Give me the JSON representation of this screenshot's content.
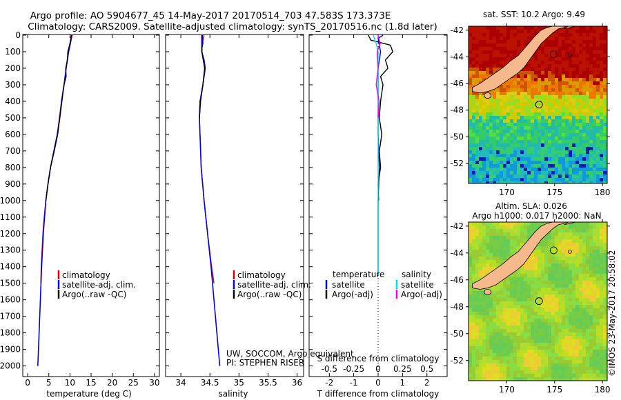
{
  "title_line1": "Argo profile: AO 5904677_45 14-May-2017 20170514_703 47.583S 173.373E",
  "title_line2": "Climatology: CARS2009. Satellite-adjusted climatology: synTS_20170516.nc (1.8d later)",
  "credit_line1": "UW, SOCCOM, Argo equivalent",
  "credit_line2": "PI: STEPHEN RISER",
  "side_stamp": "©IMOS 23-May-2017 20:58:02",
  "colors": {
    "climatology": "#dd0000",
    "satellite": "#0000ee",
    "argo": "#000000",
    "sal_satellite": "#00dddd",
    "sal_argo": "#ee00ee",
    "land": "#f5b98c"
  },
  "chart_data": [
    {
      "id": "temperature",
      "type": "line",
      "xlabel": "temperature (deg C)",
      "ylabel": "",
      "xlim": [
        -1,
        31
      ],
      "ylim": [
        2060,
        0
      ],
      "xticks": [
        0,
        5,
        10,
        15,
        20,
        25,
        30
      ],
      "yticks": [
        0,
        100,
        200,
        300,
        400,
        500,
        600,
        700,
        800,
        900,
        1000,
        1100,
        1200,
        1300,
        1400,
        1500,
        1600,
        1700,
        1800,
        1900,
        2000
      ],
      "legend": [
        "climatology",
        "satellite-adj. clim.",
        "Argo(..raw -QC)"
      ],
      "legend_position": "lower-right",
      "series": [
        {
          "name": "climatology",
          "depth": [
            0,
            50,
            100,
            200,
            300,
            400,
            500,
            600,
            700,
            800,
            900,
            1000,
            1100,
            1200,
            1300,
            1400,
            1500
          ],
          "values": [
            10.3,
            10.0,
            9.6,
            9.1,
            8.6,
            8.0,
            7.5,
            7.0,
            6.2,
            5.4,
            4.8,
            4.3,
            3.9,
            3.6,
            3.4,
            3.2,
            3.1
          ]
        },
        {
          "name": "satellite-adj. clim.",
          "depth": [
            0,
            50,
            100,
            200,
            300,
            400,
            500,
            600,
            700,
            800,
            900,
            1000,
            1200,
            1400,
            1600,
            1800,
            2000
          ],
          "values": [
            10.5,
            10.1,
            9.7,
            9.1,
            8.6,
            8.0,
            7.6,
            7.0,
            6.2,
            5.4,
            4.8,
            4.3,
            3.7,
            3.3,
            3.0,
            2.7,
            2.4
          ]
        },
        {
          "name": "Argo(..raw -QC)",
          "depth": [
            0,
            50,
            100,
            150,
            200,
            250,
            300,
            400,
            500,
            600,
            700,
            800,
            900,
            1000
          ],
          "values": [
            10.4,
            10.0,
            9.5,
            9.4,
            9.0,
            9.1,
            8.6,
            8.1,
            7.6,
            7.1,
            6.3,
            5.4,
            4.8,
            4.3
          ]
        }
      ]
    },
    {
      "id": "salinity",
      "type": "line",
      "xlabel": "salinity",
      "xlim": [
        33.75,
        36.1
      ],
      "ylim": [
        2060,
        0
      ],
      "xticks": [
        34,
        34.5,
        35,
        35.5,
        36
      ],
      "legend": [
        "climatology",
        "satellite-adj. clim.",
        "Argo(..raw -QC)"
      ],
      "legend_position": "lower-right",
      "series": [
        {
          "name": "climatology",
          "depth": [
            0,
            50,
            100,
            150,
            200,
            300,
            400,
            500,
            600,
            800,
            1000,
            1200,
            1400,
            1500
          ],
          "values": [
            34.4,
            34.37,
            34.36,
            34.4,
            34.41,
            34.38,
            34.33,
            34.32,
            34.33,
            34.35,
            34.4,
            34.46,
            34.53,
            34.57
          ]
        },
        {
          "name": "satellite-adj. clim.",
          "depth": [
            0,
            50,
            100,
            150,
            200,
            300,
            400,
            500,
            600,
            800,
            1000,
            1200,
            1400,
            1600,
            1800,
            2000
          ],
          "values": [
            34.36,
            34.36,
            34.36,
            34.4,
            34.42,
            34.38,
            34.33,
            34.32,
            34.33,
            34.35,
            34.4,
            34.46,
            34.52,
            34.57,
            34.62,
            34.67
          ]
        },
        {
          "name": "Argo(..raw -QC)",
          "depth": [
            0,
            50,
            80,
            120,
            200,
            300,
            400,
            500
          ],
          "values": [
            34.37,
            34.38,
            34.36,
            34.37,
            34.41,
            34.38,
            34.34,
            34.32
          ]
        }
      ]
    },
    {
      "id": "difference",
      "type": "line",
      "xlabel": "T difference from climatology",
      "xlabel_top": "S difference from climatology",
      "xlim": [
        -2.8,
        2.8
      ],
      "ylim": [
        2060,
        0
      ],
      "xticks": [
        -2,
        -1,
        0,
        1,
        2
      ],
      "xticks_top": [
        -0.5,
        -0.25,
        0,
        0.25,
        0.5
      ],
      "xtick_labels_top": [
        "-0.5",
        "-0.25",
        "0",
        "0.25",
        "0.5"
      ],
      "legend_headers": [
        "temperature",
        "salinity"
      ],
      "legend": [
        "satellite",
        "Argo(-adj)",
        "satellite",
        "Argo(-adj)"
      ],
      "legend_position": "lower",
      "series": [
        {
          "name": "temperature satellite",
          "depth": [
            0,
            20,
            100,
            200,
            400,
            600,
            800,
            1000,
            1200,
            1400,
            1450
          ],
          "values": [
            0.2,
            0.0,
            0.1,
            0.0,
            0.0,
            0.0,
            0.05,
            0.0,
            0.0,
            0.0,
            0.0
          ]
        },
        {
          "name": "temperature Argo(-adj)",
          "depth": [
            0,
            30,
            60,
            100,
            150,
            200,
            250,
            300,
            400,
            500,
            600,
            700,
            800,
            900,
            1000
          ],
          "values": [
            -0.4,
            -0.3,
            0.5,
            0.6,
            0.3,
            0.4,
            0.1,
            0.2,
            0.1,
            0.05,
            0.15,
            0.05,
            0.1,
            0.0,
            0.02
          ]
        },
        {
          "name": "salinity satellite",
          "depth": [
            0,
            50,
            100,
            200,
            400,
            800,
            1200,
            1450
          ],
          "values": [
            -0.05,
            -0.02,
            0.0,
            0.0,
            0.0,
            0.0,
            0.0,
            0.0
          ]
        },
        {
          "name": "salinity Argo(-adj)",
          "depth": [
            0,
            50,
            100,
            200,
            300,
            400,
            500
          ],
          "values": [
            0.0,
            0.02,
            -0.01,
            0.0,
            -0.02,
            0.01,
            0.0
          ]
        }
      ]
    },
    {
      "id": "sst-map",
      "type": "heatmap",
      "title": "sat. SST: 10.2  Argo: 9.49",
      "xlim": [
        166,
        180.5
      ],
      "ylim": [
        -53.5,
        -41.7
      ],
      "xticks": [
        170,
        175,
        180
      ],
      "yticks": [
        -42,
        -44,
        -46,
        -48,
        -50,
        -52
      ],
      "argo_position": [
        173.373,
        -47.583
      ]
    },
    {
      "id": "sla-map",
      "type": "heatmap",
      "title_line1": "Altim. SLA: 0.026",
      "title_line2": "Argo h1000: 0.017 h2000: NaN",
      "xlim": [
        166,
        180.5
      ],
      "ylim": [
        -53.5,
        -41.7
      ],
      "xticks": [
        170,
        175,
        180
      ],
      "yticks": [
        -42,
        -44,
        -46,
        -48,
        -50,
        -52
      ],
      "argo_position": [
        173.373,
        -47.583
      ]
    }
  ]
}
